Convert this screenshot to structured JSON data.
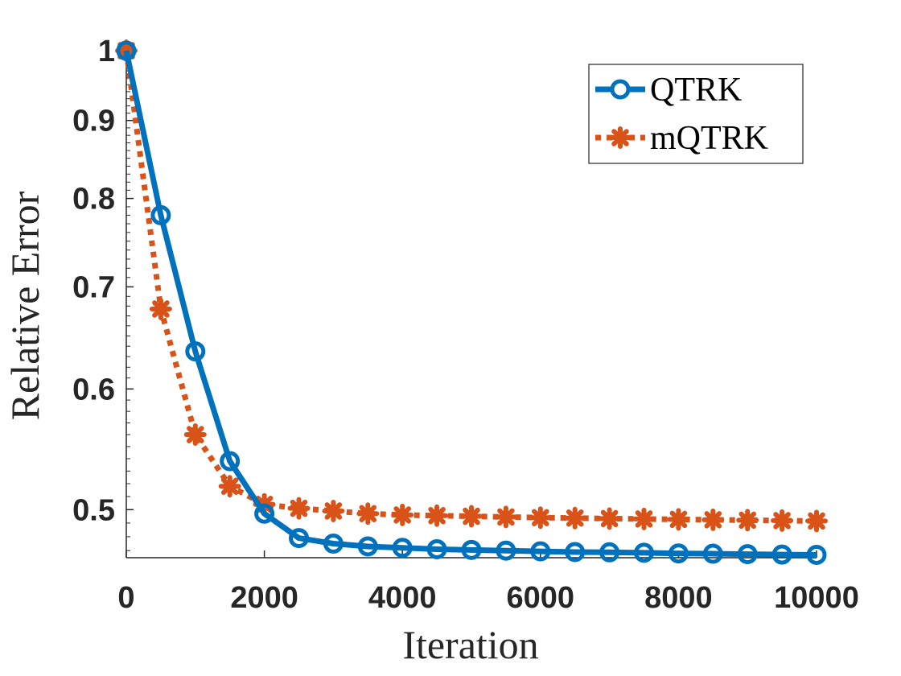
{
  "chart_data": {
    "type": "line",
    "xlabel": "Iteration",
    "ylabel": "Relative Error",
    "xlim": [
      0,
      10000
    ],
    "ylim": [
      0.465,
      1.0
    ],
    "yscale": "log",
    "xticks": [
      0,
      2000,
      4000,
      6000,
      8000,
      10000
    ],
    "xtick_labels": [
      "0",
      "2000",
      "4000",
      "6000",
      "8000",
      "10000"
    ],
    "yticks": [
      0.5,
      0.6,
      0.7,
      0.8,
      0.9,
      1.0
    ],
    "ytick_labels": [
      "0.5",
      "0.6",
      "0.7",
      "0.8",
      "0.9",
      "1"
    ],
    "grid": false,
    "legend_position": "top-right",
    "x": [
      0,
      500,
      1000,
      1500,
      2000,
      2500,
      3000,
      3500,
      4000,
      4500,
      5000,
      5500,
      6000,
      6500,
      7000,
      7500,
      8000,
      8500,
      9000,
      9500,
      10000
    ],
    "series": [
      {
        "name": "QTRK",
        "color": "#0072BD",
        "line_style": "solid",
        "marker": "circle",
        "values": [
          1.0,
          0.78,
          0.635,
          0.538,
          0.497,
          0.479,
          0.475,
          0.473,
          0.472,
          0.471,
          0.4705,
          0.47,
          0.4695,
          0.469,
          0.4688,
          0.4685,
          0.468,
          0.4678,
          0.4675,
          0.4672,
          0.467
        ]
      },
      {
        "name": "mQTRK",
        "color": "#D95319",
        "line_style": "dotted",
        "marker": "star",
        "values": [
          1.0,
          0.677,
          0.56,
          0.518,
          0.504,
          0.501,
          0.499,
          0.497,
          0.496,
          0.4955,
          0.495,
          0.4945,
          0.494,
          0.4937,
          0.4933,
          0.493,
          0.4927,
          0.4924,
          0.4921,
          0.4918,
          0.4915
        ]
      }
    ]
  }
}
